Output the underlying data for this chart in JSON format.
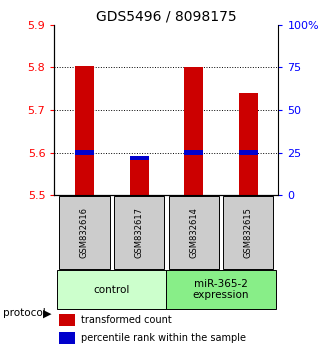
{
  "title": "GDS5496 / 8098175",
  "samples": [
    "GSM832616",
    "GSM832617",
    "GSM832614",
    "GSM832615"
  ],
  "red_values": [
    5.803,
    5.585,
    5.802,
    5.74
  ],
  "blue_values": [
    5.6,
    5.588,
    5.6,
    5.6
  ],
  "y_min": 5.5,
  "y_max": 5.9,
  "y_ticks_left": [
    5.5,
    5.6,
    5.7,
    5.8,
    5.9
  ],
  "y_ticks_right": [
    0,
    25,
    50,
    75,
    100
  ],
  "y_ticks_right_labels": [
    "0",
    "25",
    "50",
    "75",
    "100%"
  ],
  "bar_color": "#cc0000",
  "blue_color": "#0000cc",
  "bar_width": 0.35,
  "protocol_label": "protocol",
  "legend_red": "transformed count",
  "legend_blue": "percentile rank within the sample",
  "bg_color": "#ffffff",
  "sample_box_color": "#cccccc",
  "group1_color": "#ccffcc",
  "group2_color": "#88ee88",
  "title_fontsize": 10,
  "tick_fontsize": 8,
  "sample_fontsize": 6,
  "group_fontsize": 7.5,
  "legend_fontsize": 7
}
